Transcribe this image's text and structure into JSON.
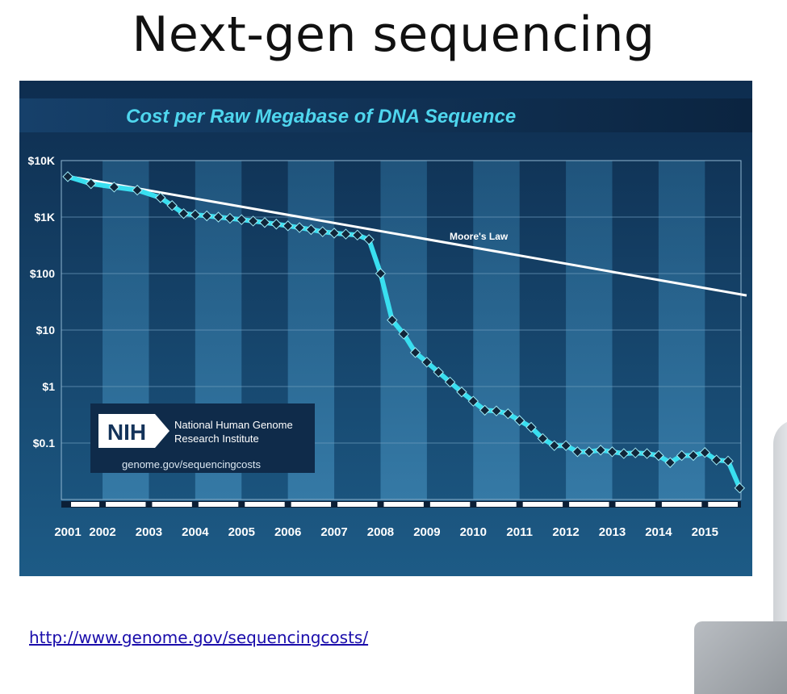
{
  "slide": {
    "title": "Next-gen sequencing",
    "link": "http://www.genome.gov/sequencingcosts/"
  },
  "nih": {
    "logo_text": "NIH",
    "name_line1": "National Human Genome",
    "name_line2": "Research Institute",
    "url": "genome.gov/sequencingcosts"
  },
  "colors": {
    "panel_dark": "#0e2d4f",
    "panel_light": "#1d5b86",
    "title_cyan": "#4fd6ee",
    "series_cyan": "#39dff0",
    "moore_line": "#ffffff",
    "marker": "#10263a"
  },
  "chart_data": {
    "type": "line",
    "title": "Cost per Raw Megabase of DNA Sequence",
    "y_scale": "log",
    "ylim": [
      0.01,
      10000
    ],
    "yticks": [
      {
        "value": 10000,
        "label": "$10K"
      },
      {
        "value": 1000,
        "label": "$1K"
      },
      {
        "value": 100,
        "label": "$100"
      },
      {
        "value": 10,
        "label": "$10"
      },
      {
        "value": 1,
        "label": "$1"
      },
      {
        "value": 0.1,
        "label": "$0.1"
      }
    ],
    "xlim": [
      2001.0,
      2015.25
    ],
    "x_tick_labels": [
      {
        "value": 2001.0,
        "label": "2001"
      },
      {
        "value": 2001.75,
        "label": "2002"
      },
      {
        "value": 2002.75,
        "label": "2003"
      },
      {
        "value": 2003.75,
        "label": "2004"
      },
      {
        "value": 2004.75,
        "label": "2005"
      },
      {
        "value": 2005.75,
        "label": "2006"
      },
      {
        "value": 2006.75,
        "label": "2007"
      },
      {
        "value": 2007.75,
        "label": "2008"
      },
      {
        "value": 2008.75,
        "label": "2009"
      },
      {
        "value": 2009.75,
        "label": "2010"
      },
      {
        "value": 2010.75,
        "label": "2011"
      },
      {
        "value": 2011.75,
        "label": "2012"
      },
      {
        "value": 2012.75,
        "label": "2013"
      },
      {
        "value": 2013.75,
        "label": "2014"
      },
      {
        "value": 2014.75,
        "label": "2015"
      }
    ],
    "series": [
      {
        "name": "",
        "points": [
          [
            2001.0,
            5200
          ],
          [
            2001.5,
            3900
          ],
          [
            2002.0,
            3400
          ],
          [
            2002.5,
            3000
          ],
          [
            2003.0,
            2200
          ],
          [
            2003.25,
            1600
          ],
          [
            2003.5,
            1150
          ],
          [
            2003.75,
            1100
          ],
          [
            2004.0,
            1050
          ],
          [
            2004.25,
            1000
          ],
          [
            2004.5,
            950
          ],
          [
            2004.75,
            900
          ],
          [
            2005.0,
            850
          ],
          [
            2005.25,
            800
          ],
          [
            2005.5,
            750
          ],
          [
            2005.75,
            700
          ],
          [
            2006.0,
            650
          ],
          [
            2006.25,
            600
          ],
          [
            2006.5,
            550
          ],
          [
            2006.75,
            520
          ],
          [
            2007.0,
            500
          ],
          [
            2007.25,
            480
          ],
          [
            2007.5,
            400
          ],
          [
            2007.75,
            100
          ],
          [
            2008.0,
            15
          ],
          [
            2008.25,
            8.5
          ],
          [
            2008.5,
            4
          ],
          [
            2008.75,
            2.7
          ],
          [
            2009.0,
            1.8
          ],
          [
            2009.25,
            1.2
          ],
          [
            2009.5,
            0.8
          ],
          [
            2009.75,
            0.55
          ],
          [
            2010.0,
            0.38
          ],
          [
            2010.25,
            0.37
          ],
          [
            2010.5,
            0.33
          ],
          [
            2010.75,
            0.25
          ],
          [
            2011.0,
            0.19
          ],
          [
            2011.25,
            0.12
          ],
          [
            2011.5,
            0.09
          ],
          [
            2011.75,
            0.09
          ],
          [
            2012.0,
            0.07
          ],
          [
            2012.25,
            0.07
          ],
          [
            2012.5,
            0.075
          ],
          [
            2012.75,
            0.07
          ],
          [
            2013.0,
            0.065
          ],
          [
            2013.25,
            0.067
          ],
          [
            2013.5,
            0.065
          ],
          [
            2013.75,
            0.06
          ],
          [
            2014.0,
            0.045
          ],
          [
            2014.25,
            0.06
          ],
          [
            2014.5,
            0.06
          ],
          [
            2014.75,
            0.068
          ],
          [
            2015.0,
            0.05
          ],
          [
            2015.25,
            0.048
          ],
          [
            2015.5,
            0.016
          ]
        ]
      }
    ],
    "annotations": [
      {
        "text": "Moore's Law",
        "start": [
          2001.0,
          5300
        ],
        "end": [
          2015.65,
          41
        ]
      }
    ]
  }
}
